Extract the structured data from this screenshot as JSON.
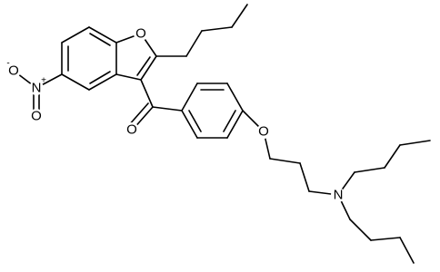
{
  "atoms": [
    "O",
    "O",
    "O",
    "N",
    "N",
    "O",
    "O"
  ],
  "charges": [
    "+",
    "-"
  ]
}
